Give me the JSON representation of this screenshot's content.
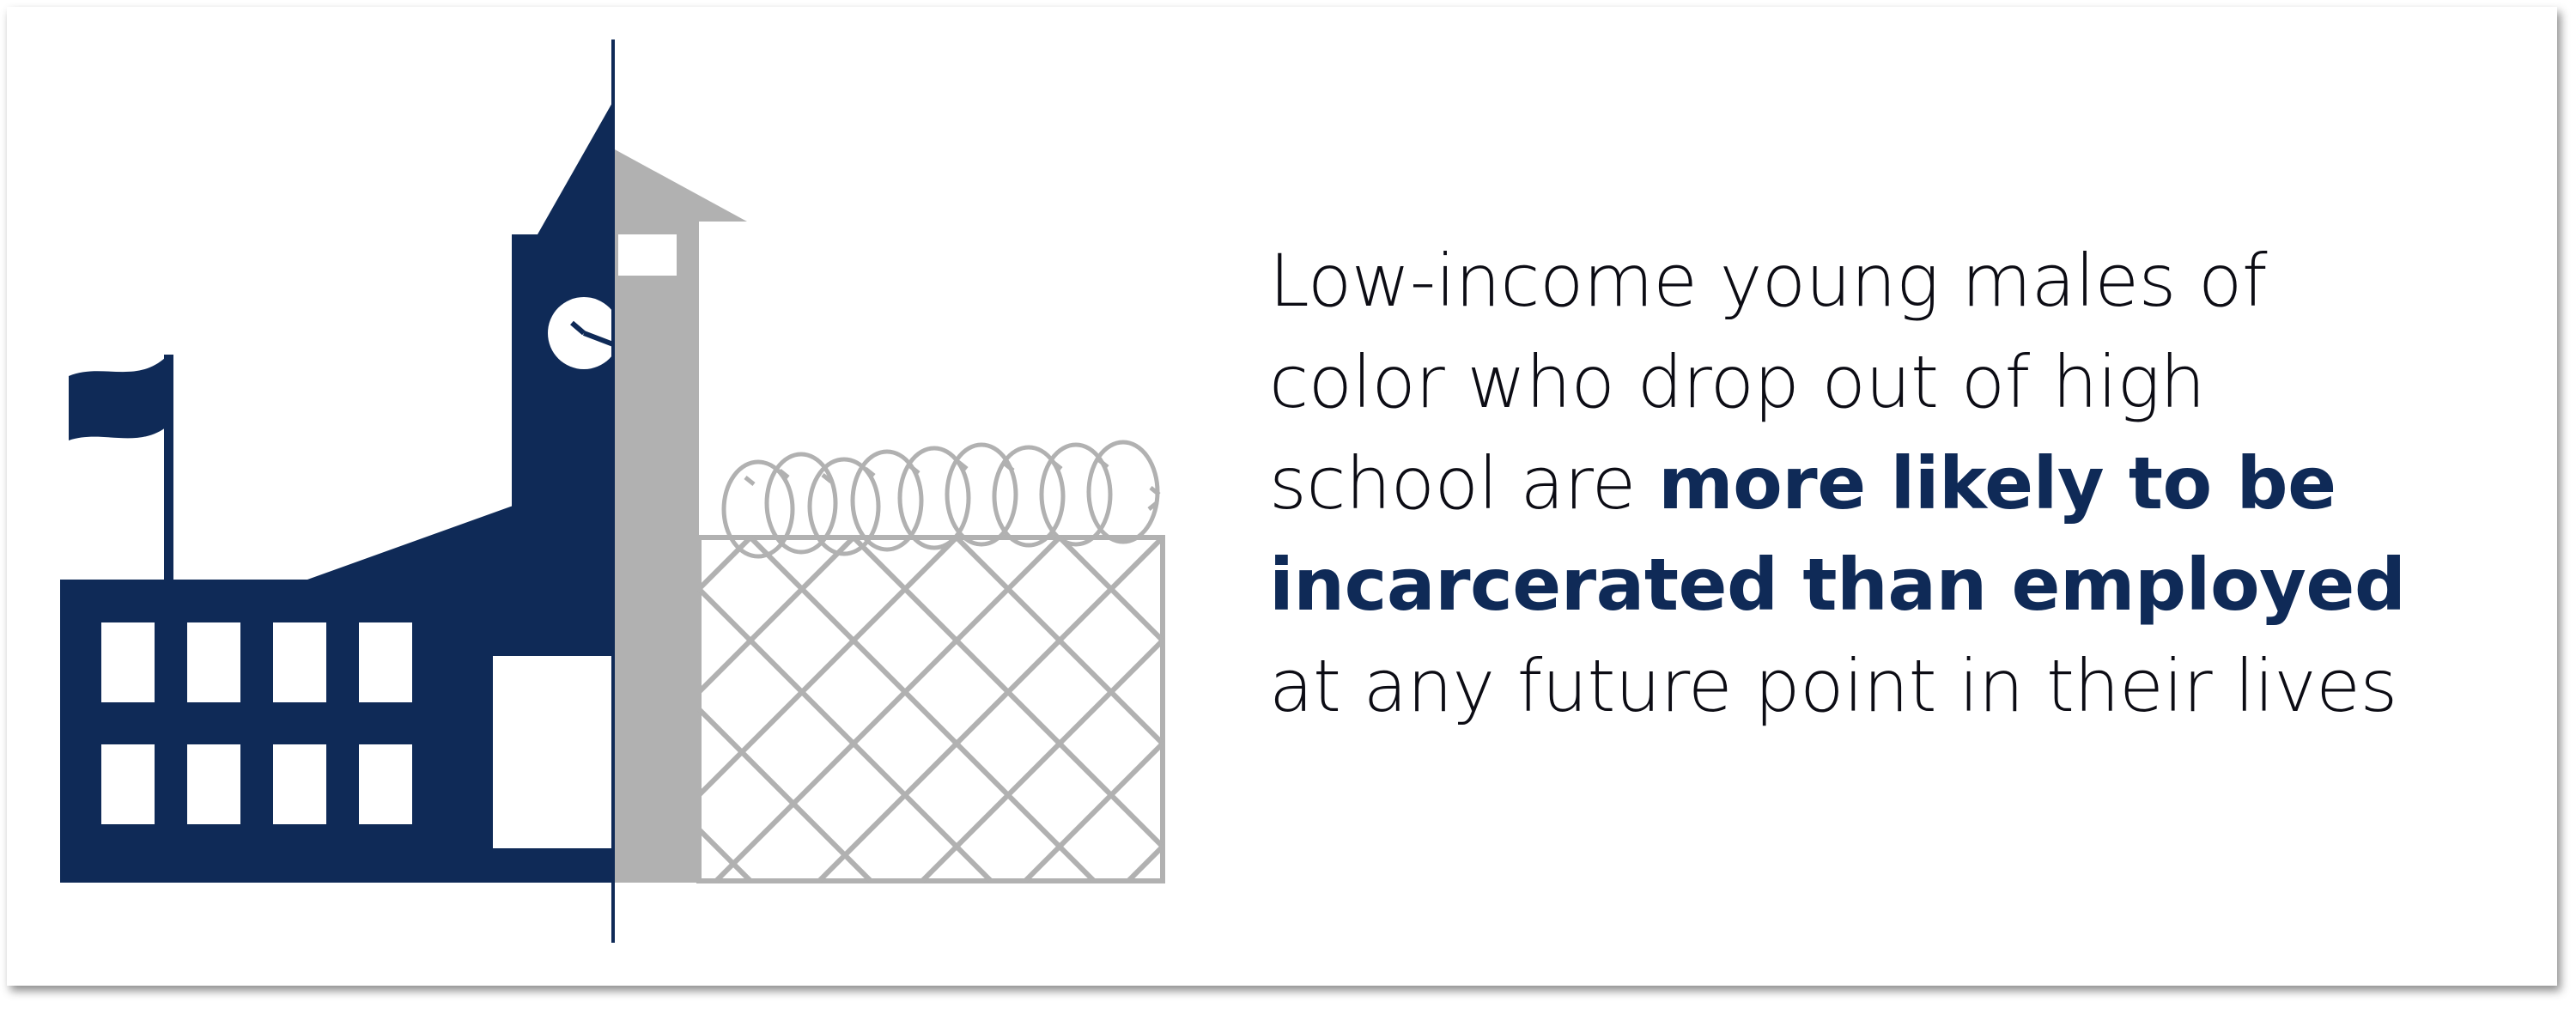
{
  "colors": {
    "school_navy": "#0f2a57",
    "prison_gray": "#b1b1b1",
    "text": "#0c0c14",
    "emphasis": "#0f2a57",
    "background": "#ffffff"
  },
  "illustration": {
    "left_icon": "school-building-icon",
    "right_icon": "prison-fence-icon",
    "details": [
      "flag-icon",
      "clock-icon",
      "razor-wire-icon",
      "chain-link-fence-icon"
    ]
  },
  "message": {
    "line1": "Low-income young males of",
    "line2": "color who drop out of high",
    "line3_plain": "school are ",
    "line3_bold": "more likely to be",
    "line4_bold": "incarcerated than employed",
    "line5": "at any future point in their lives"
  }
}
